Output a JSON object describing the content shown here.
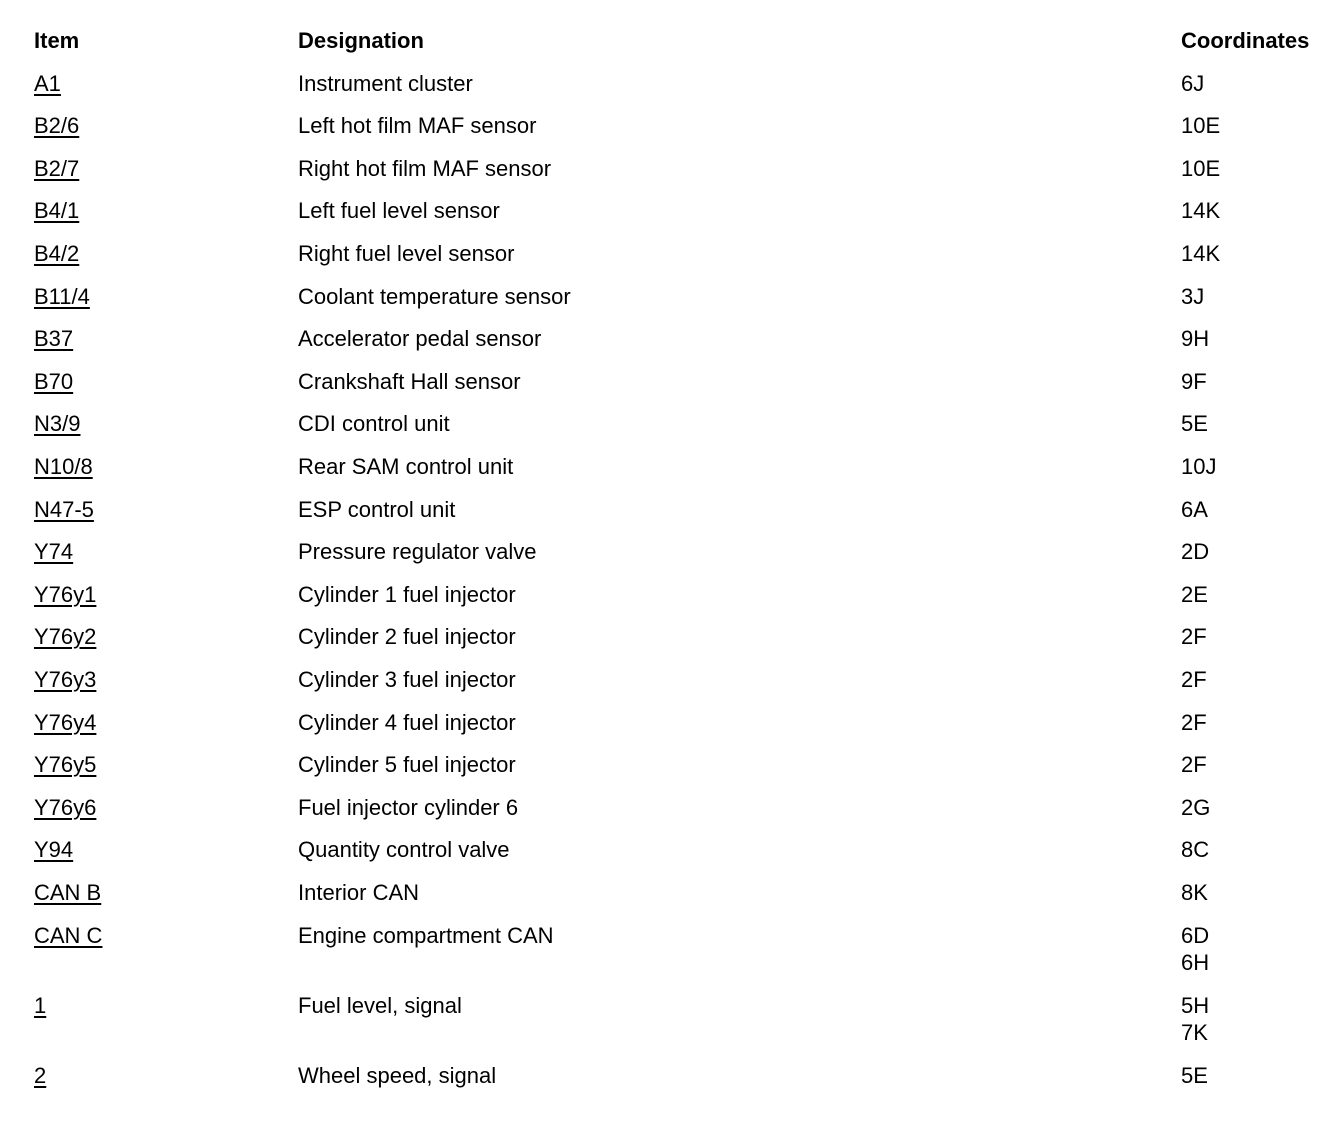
{
  "headers": {
    "item": "Item",
    "designation": "Designation",
    "coordinates": "Coordinates"
  },
  "rows": [
    {
      "item": "A1",
      "designation": "Instrument cluster",
      "coordinates": [
        "6J"
      ]
    },
    {
      "item": "B2/6",
      "designation": "Left hot film MAF sensor",
      "coordinates": [
        "10E"
      ]
    },
    {
      "item": "B2/7",
      "designation": "Right hot film MAF sensor",
      "coordinates": [
        "10E"
      ]
    },
    {
      "item": "B4/1",
      "designation": "Left fuel level sensor",
      "coordinates": [
        "14K"
      ]
    },
    {
      "item": "B4/2",
      "designation": "Right fuel level sensor",
      "coordinates": [
        "14K"
      ]
    },
    {
      "item": "B11/4",
      "designation": "Coolant temperature sensor",
      "coordinates": [
        "3J"
      ]
    },
    {
      "item": "B37",
      "designation": "Accelerator pedal sensor",
      "coordinates": [
        "9H"
      ]
    },
    {
      "item": "B70",
      "designation": "Crankshaft Hall sensor",
      "coordinates": [
        "9F"
      ]
    },
    {
      "item": "N3/9",
      "designation": "CDI control unit",
      "coordinates": [
        "5E"
      ]
    },
    {
      "item": "N10/8",
      "designation": "Rear SAM control unit",
      "coordinates": [
        "10J"
      ]
    },
    {
      "item": "N47-5",
      "designation": "ESP control unit",
      "coordinates": [
        "6A"
      ]
    },
    {
      "item": "Y74",
      "designation": "Pressure regulator valve",
      "coordinates": [
        "2D"
      ]
    },
    {
      "item": "Y76y1",
      "designation": "Cylinder 1 fuel injector",
      "coordinates": [
        "2E"
      ]
    },
    {
      "item": "Y76y2",
      "designation": "Cylinder 2 fuel injector",
      "coordinates": [
        "2F"
      ]
    },
    {
      "item": "Y76y3",
      "designation": "Cylinder 3 fuel injector",
      "coordinates": [
        "2F"
      ]
    },
    {
      "item": "Y76y4",
      "designation": "Cylinder 4 fuel injector",
      "coordinates": [
        "2F"
      ]
    },
    {
      "item": "Y76y5",
      "designation": "Cylinder 5 fuel injector",
      "coordinates": [
        "2F"
      ]
    },
    {
      "item": "Y76y6",
      "designation": "Fuel injector cylinder 6",
      "coordinates": [
        "2G"
      ]
    },
    {
      "item": "Y94",
      "designation": "Quantity control valve",
      "coordinates": [
        "8C"
      ]
    },
    {
      "item": "CAN B",
      "designation": "Interior CAN",
      "coordinates": [
        "8K"
      ]
    },
    {
      "item": "CAN C",
      "designation": "Engine compartment CAN",
      "coordinates": [
        "6D",
        "6H"
      ]
    },
    {
      "item": "1",
      "designation": "Fuel level, signal",
      "coordinates": [
        "5H",
        "7K"
      ]
    },
    {
      "item": "2",
      "designation": "Wheel speed, signal",
      "coordinates": [
        "5E"
      ]
    }
  ]
}
